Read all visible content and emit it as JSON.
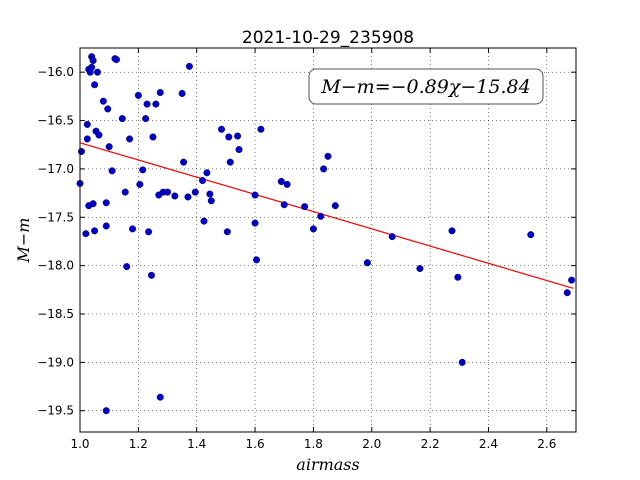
{
  "chart_data": {
    "type": "scatter",
    "title": "2021-10-29_235908",
    "xlabel": "airmass",
    "ylabel": "M−m",
    "xlim": [
      1.0,
      2.7
    ],
    "ylim": [
      -19.72,
      -15.75
    ],
    "y_inverted": true,
    "grid": true,
    "xticks": [
      1.0,
      1.2,
      1.4,
      1.6,
      1.8,
      2.0,
      2.2,
      2.4,
      2.6
    ],
    "xtick_labels": [
      "1.0",
      "1.2",
      "1.4",
      "1.6",
      "1.8",
      "2.0",
      "2.2",
      "2.4",
      "2.6"
    ],
    "yticks": [
      -16.0,
      -16.5,
      -17.0,
      -17.5,
      -18.0,
      -18.5,
      -19.0,
      -19.5
    ],
    "ytick_labels": [
      "−16.0",
      "−16.5",
      "−17.0",
      "−17.5",
      "−18.0",
      "−18.5",
      "−19.0",
      "−19.5"
    ],
    "annotation": "M−m=−0.89χ−15.84",
    "annotation_placement": "top-right",
    "colors": {
      "points": "#0000cc",
      "fit": "#ff0000"
    },
    "series": [
      {
        "kind": "points",
        "points": [
          [
            1.0,
            -17.15
          ],
          [
            1.005,
            -16.82
          ],
          [
            1.02,
            -17.67
          ],
          [
            1.025,
            -16.54
          ],
          [
            1.025,
            -16.69
          ],
          [
            1.03,
            -17.38
          ],
          [
            1.03,
            -15.97
          ],
          [
            1.035,
            -16.0
          ],
          [
            1.04,
            -15.84
          ],
          [
            1.04,
            -15.95
          ],
          [
            1.045,
            -15.88
          ],
          [
            1.045,
            -17.36
          ],
          [
            1.05,
            -16.13
          ],
          [
            1.05,
            -17.64
          ],
          [
            1.055,
            -16.61
          ],
          [
            1.06,
            -16.0
          ],
          [
            1.065,
            -16.65
          ],
          [
            1.08,
            -16.3
          ],
          [
            1.09,
            -17.35
          ],
          [
            1.09,
            -17.59
          ],
          [
            1.09,
            -19.5
          ],
          [
            1.095,
            -16.38
          ],
          [
            1.1,
            -16.77
          ],
          [
            1.11,
            -17.02
          ],
          [
            1.12,
            -15.86
          ],
          [
            1.125,
            -15.87
          ],
          [
            1.145,
            -16.48
          ],
          [
            1.155,
            -17.24
          ],
          [
            1.16,
            -18.01
          ],
          [
            1.17,
            -16.69
          ],
          [
            1.18,
            -17.62
          ],
          [
            1.2,
            -16.24
          ],
          [
            1.205,
            -17.16
          ],
          [
            1.215,
            -17.01
          ],
          [
            1.225,
            -16.48
          ],
          [
            1.23,
            -16.33
          ],
          [
            1.235,
            -17.65
          ],
          [
            1.245,
            -18.1
          ],
          [
            1.25,
            -16.67
          ],
          [
            1.26,
            -16.33
          ],
          [
            1.27,
            -17.27
          ],
          [
            1.275,
            -16.21
          ],
          [
            1.275,
            -19.36
          ],
          [
            1.285,
            -17.24
          ],
          [
            1.3,
            -17.24
          ],
          [
            1.325,
            -17.28
          ],
          [
            1.35,
            -16.22
          ],
          [
            1.355,
            -16.93
          ],
          [
            1.37,
            -17.29
          ],
          [
            1.375,
            -15.94
          ],
          [
            1.395,
            -17.24
          ],
          [
            1.42,
            -17.12
          ],
          [
            1.425,
            -17.54
          ],
          [
            1.435,
            -17.04
          ],
          [
            1.445,
            -17.26
          ],
          [
            1.45,
            -17.33
          ],
          [
            1.485,
            -16.59
          ],
          [
            1.505,
            -17.65
          ],
          [
            1.51,
            -16.67
          ],
          [
            1.515,
            -16.93
          ],
          [
            1.54,
            -16.66
          ],
          [
            1.545,
            -16.8
          ],
          [
            1.6,
            -17.27
          ],
          [
            1.6,
            -17.56
          ],
          [
            1.605,
            -17.94
          ],
          [
            1.62,
            -16.59
          ],
          [
            1.69,
            -17.13
          ],
          [
            1.7,
            -17.37
          ],
          [
            1.71,
            -17.16
          ],
          [
            1.77,
            -17.39
          ],
          [
            1.8,
            -17.62
          ],
          [
            1.825,
            -17.49
          ],
          [
            1.835,
            -17.0
          ],
          [
            1.85,
            -16.87
          ],
          [
            1.875,
            -17.38
          ],
          [
            1.985,
            -17.97
          ],
          [
            2.07,
            -17.7
          ],
          [
            2.165,
            -18.03
          ],
          [
            2.275,
            -17.64
          ],
          [
            2.295,
            -18.12
          ],
          [
            2.31,
            -19.0
          ],
          [
            2.545,
            -17.68
          ],
          [
            2.67,
            -18.28
          ],
          [
            2.685,
            -18.15
          ]
        ]
      },
      {
        "kind": "fit-line",
        "slope": -0.89,
        "intercept": -15.84,
        "x_range": [
          1.0,
          2.69
        ]
      }
    ]
  }
}
